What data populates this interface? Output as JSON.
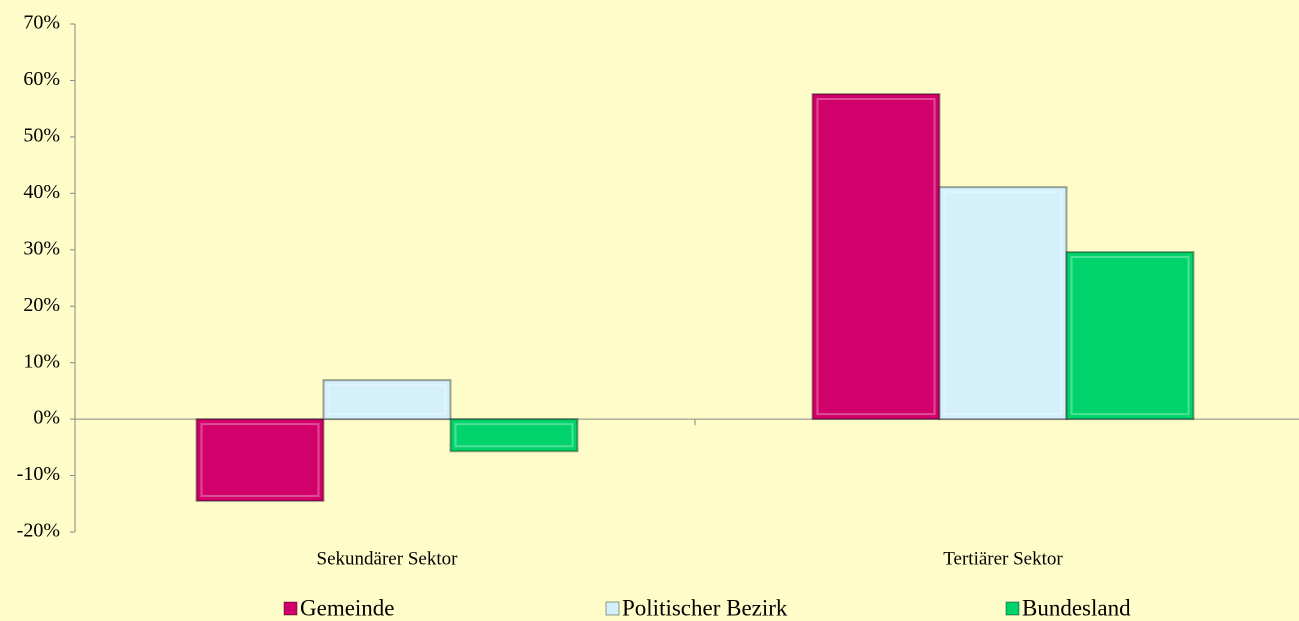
{
  "chart_data": {
    "type": "bar",
    "categories": [
      "Sekundärer Sektor",
      "Tertiärer Sektor"
    ],
    "series": [
      {
        "name": "Gemeinde",
        "color": "#d1006b",
        "values": [
          -14.5,
          57.6
        ]
      },
      {
        "name": "Politischer Bezirk",
        "color": "#d3f0fb",
        "values": [
          6.9,
          41.1
        ]
      },
      {
        "name": "Bundesland",
        "color": "#00d36b",
        "values": [
          -5.7,
          29.6
        ]
      }
    ],
    "ylim": [
      -20,
      70
    ],
    "yticks": [
      {
        "value": -20,
        "label": "-20%"
      },
      {
        "value": -10,
        "label": "-10%"
      },
      {
        "value": 0,
        "label": "0%"
      },
      {
        "value": 10,
        "label": "10%"
      },
      {
        "value": 20,
        "label": "20%"
      },
      {
        "value": 30,
        "label": "30%"
      },
      {
        "value": 40,
        "label": "40%"
      },
      {
        "value": 50,
        "label": "50%"
      },
      {
        "value": 60,
        "label": "60%"
      },
      {
        "value": 70,
        "label": "70%"
      }
    ],
    "legend": "bottom"
  }
}
